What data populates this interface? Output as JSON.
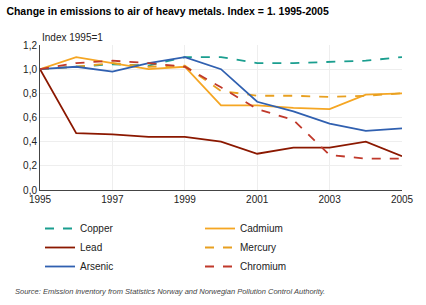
{
  "chart_data": {
    "type": "line",
    "title": "Change in emissions to air of heavy metals. Index = 1. 1995-2005",
    "ylabel": "Index 1995=1",
    "source": "Source: Emission inventory from Statistics Norway and Norwegian Pollution Control Authority.",
    "x": [
      1995,
      1996,
      1997,
      1998,
      1999,
      2000,
      2001,
      2002,
      2003,
      2004,
      2005
    ],
    "xlim": [
      1995,
      2005
    ],
    "xticks": [
      1995,
      1997,
      1999,
      2001,
      2003,
      2005
    ],
    "ylim": [
      0.0,
      1.2
    ],
    "yticks": [
      {
        "value": 0.0,
        "label": "0,0"
      },
      {
        "value": 0.2,
        "label": "0,2"
      },
      {
        "value": 0.4,
        "label": "0,4"
      },
      {
        "value": 0.6,
        "label": "0,6"
      },
      {
        "value": 0.8,
        "label": "0,8"
      },
      {
        "value": 1.0,
        "label": "1,0"
      },
      {
        "value": 1.2,
        "label": "1,2"
      }
    ],
    "grid": true,
    "legend": "bottom",
    "series": [
      {
        "name": "Copper",
        "color": "#1a9e8f",
        "line_style": "dashed",
        "values": [
          1.0,
          1.02,
          1.04,
          1.03,
          1.1,
          1.1,
          1.05,
          1.05,
          1.06,
          1.07,
          1.1
        ]
      },
      {
        "name": "Cadmium",
        "color": "#f5a623",
        "line_style": "solid",
        "values": [
          1.0,
          1.1,
          1.05,
          1.0,
          1.02,
          0.7,
          0.7,
          0.68,
          0.67,
          0.79,
          0.8
        ]
      },
      {
        "name": "Lead",
        "color": "#8b1800",
        "line_style": "solid",
        "values": [
          1.0,
          0.47,
          0.46,
          0.44,
          0.44,
          0.4,
          0.3,
          0.35,
          0.35,
          0.4,
          0.28
        ]
      },
      {
        "name": "Mercury",
        "color": "#e8a020",
        "line_style": "dashed",
        "values": [
          1.0,
          1.02,
          1.05,
          1.02,
          1.03,
          0.82,
          0.78,
          0.78,
          0.77,
          0.78,
          0.8
        ]
      },
      {
        "name": "Arsenic",
        "color": "#3060b0",
        "line_style": "solid",
        "values": [
          1.0,
          1.02,
          0.98,
          1.05,
          1.1,
          1.0,
          0.73,
          0.65,
          0.55,
          0.49,
          0.51
        ]
      },
      {
        "name": "Chromium",
        "color": "#c0392b",
        "line_style": "dashed",
        "values": [
          1.0,
          1.05,
          1.07,
          1.05,
          1.02,
          0.85,
          0.67,
          0.58,
          0.29,
          0.26,
          0.26
        ]
      }
    ]
  }
}
